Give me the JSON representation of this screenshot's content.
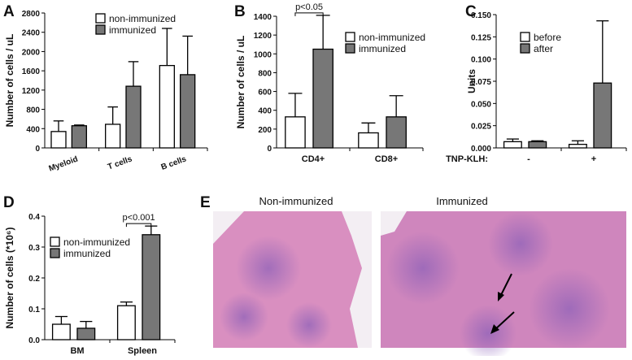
{
  "chart_data": [
    {
      "type": "bar",
      "label": "A",
      "ylabel": "Number of cells / uL",
      "categories": [
        "Myeloid",
        "T cells",
        "B cells"
      ],
      "series": [
        {
          "name": "non-immunized",
          "color": "#ffffff",
          "values": [
            340,
            490,
            1710
          ],
          "errors": [
            220,
            360,
            770
          ]
        },
        {
          "name": "immunized",
          "color": "#777777",
          "values": [
            460,
            1280,
            1520
          ],
          "errors": [
            15,
            510,
            800
          ]
        }
      ],
      "ylim": [
        0,
        2800
      ],
      "yticks": [
        0,
        400,
        800,
        1200,
        1600,
        2000,
        2400,
        2800
      ]
    },
    {
      "type": "bar",
      "label": "B",
      "ylabel": "Number of cells / uL",
      "annotation": "p<0.05",
      "categories": [
        "CD4+",
        "CD8+"
      ],
      "series": [
        {
          "name": "non-immunized",
          "color": "#ffffff",
          "values": [
            330,
            160
          ],
          "errors": [
            250,
            105
          ]
        },
        {
          "name": "immunized",
          "color": "#777777",
          "values": [
            1050,
            330
          ],
          "errors": [
            360,
            225
          ]
        }
      ],
      "ylim": [
        0,
        1400
      ],
      "yticks": [
        0,
        200,
        400,
        600,
        800,
        1000,
        1200,
        1400
      ]
    },
    {
      "type": "bar",
      "label": "C",
      "ylabel": "Units",
      "xlabel": "TNP-KLH:",
      "categories": [
        "-",
        "+"
      ],
      "series": [
        {
          "name": "before",
          "color": "#ffffff",
          "values": [
            0.007,
            0.004
          ],
          "errors": [
            0.003,
            0.004
          ]
        },
        {
          "name": "after",
          "color": "#777777",
          "values": [
            0.007,
            0.073
          ],
          "errors": [
            0.001,
            0.07
          ]
        }
      ],
      "ylim": [
        0,
        0.15
      ],
      "yticks": [
        {
          "value": 0,
          "label": "0.000"
        },
        {
          "value": 0.025,
          "label": "0.025"
        },
        {
          "value": 0.05,
          "label": "0.050"
        },
        {
          "value": 0.075,
          "label": "0.075"
        },
        {
          "value": 0.1,
          "label": "0.100"
        },
        {
          "value": 0.125,
          "label": "0.125"
        },
        {
          "value": 0.15,
          "label": "0.150"
        }
      ]
    },
    {
      "type": "bar",
      "label": "D",
      "ylabel": "Number of cells (*10⁶)",
      "annotation": "p<0.001",
      "categories": [
        "BM",
        "Spleen"
      ],
      "series": [
        {
          "name": "non-immunized",
          "color": "#ffffff",
          "values": [
            0.05,
            0.11
          ],
          "errors": [
            0.025,
            0.012
          ]
        },
        {
          "name": "immunized",
          "color": "#777777",
          "values": [
            0.037,
            0.34
          ],
          "errors": [
            0.022,
            0.028
          ]
        }
      ],
      "ylim": [
        0,
        0.4
      ],
      "yticks": [
        {
          "value": 0,
          "label": "0.0"
        },
        {
          "value": 0.1,
          "label": "0.1"
        },
        {
          "value": 0.2,
          "label": "0.2"
        },
        {
          "value": 0.3,
          "label": "0.3"
        },
        {
          "value": 0.4,
          "label": "0.4"
        }
      ]
    }
  ],
  "panel_e": {
    "label": "E",
    "titles": [
      "Non-immunized",
      "Immunized"
    ]
  }
}
